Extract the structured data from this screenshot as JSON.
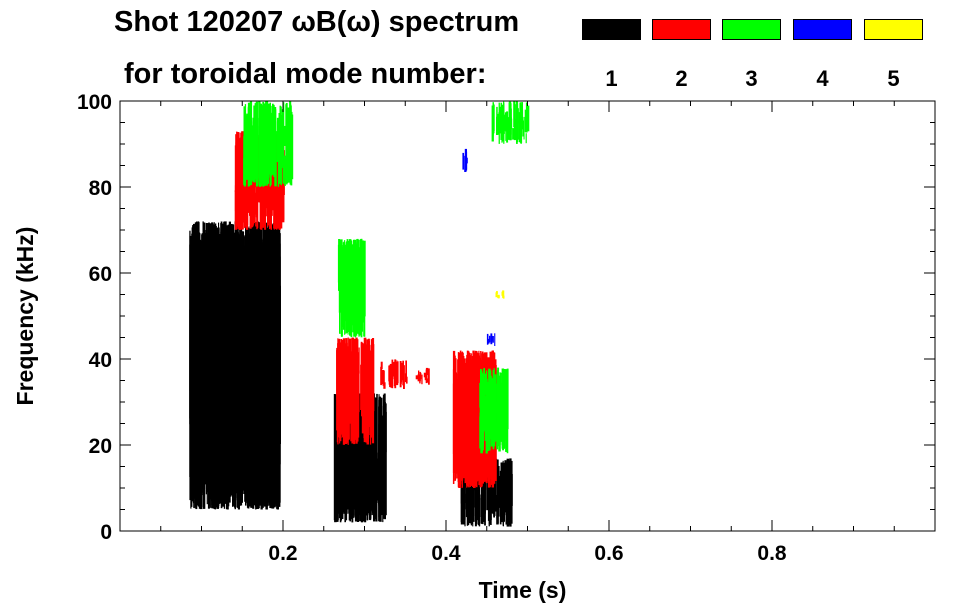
{
  "header": {
    "title_line1": "Shot 120207 ωB(ω) spectrum",
    "title_line2": "for toroidal mode number:"
  },
  "legend": [
    {
      "label": "1",
      "color": "#000000"
    },
    {
      "label": "2",
      "color": "#ff0000"
    },
    {
      "label": "3",
      "color": "#00ff00"
    },
    {
      "label": "4",
      "color": "#0000ff"
    },
    {
      "label": "5",
      "color": "#ffff00"
    }
  ],
  "chart_data": {
    "type": "heatmap",
    "title": "Shot 120207 ωB(ω) spectrum for toroidal mode number",
    "xlabel": "Time (s)",
    "ylabel": "Frequency (kHz)",
    "xlim": [
      0.0,
      1.0
    ],
    "ylim": [
      0,
      100
    ],
    "x_ticks": [
      0.2,
      0.4,
      0.6,
      0.8
    ],
    "x_tick_labels": [
      "0.2",
      "0.4",
      "0.6",
      "0.8"
    ],
    "y_ticks": [
      0,
      20,
      40,
      60,
      80,
      100
    ],
    "y_tick_labels": [
      "0",
      "20",
      "40",
      "60",
      "80",
      "100"
    ],
    "series": [
      {
        "name": "n=1",
        "color": "#000000",
        "regions": [
          {
            "t": [
              0.085,
              0.195
            ],
            "f": [
              5,
              72
            ]
          },
          {
            "t": [
              0.262,
              0.325
            ],
            "f": [
              2,
              32
            ]
          },
          {
            "t": [
              0.418,
              0.48
            ],
            "f": [
              1,
              17
            ]
          }
        ]
      },
      {
        "name": "n=2",
        "color": "#ff0000",
        "regions": [
          {
            "t": [
              0.14,
              0.2
            ],
            "f": [
              70,
              93
            ]
          },
          {
            "t": [
              0.265,
              0.31
            ],
            "f": [
              20,
              45
            ]
          },
          {
            "t": [
              0.318,
              0.352
            ],
            "f": [
              33,
              40
            ]
          },
          {
            "t": [
              0.362,
              0.378
            ],
            "f": [
              34,
              38
            ]
          },
          {
            "t": [
              0.408,
              0.46
            ],
            "f": [
              10,
              42
            ]
          }
        ]
      },
      {
        "name": "n=3",
        "color": "#00ff00",
        "regions": [
          {
            "t": [
              0.15,
              0.21
            ],
            "f": [
              80,
              100
            ]
          },
          {
            "t": [
              0.267,
              0.3
            ],
            "f": [
              45,
              68
            ]
          },
          {
            "t": [
              0.44,
              0.475
            ],
            "f": [
              18,
              38
            ]
          },
          {
            "t": [
              0.455,
              0.5
            ],
            "f": [
              90,
              100
            ]
          }
        ]
      },
      {
        "name": "n=4",
        "color": "#0000ff",
        "regions": [
          {
            "t": [
              0.45,
              0.46
            ],
            "f": [
              43,
              46
            ]
          },
          {
            "t": [
              0.42,
              0.425
            ],
            "f": [
              83,
              89
            ]
          }
        ]
      },
      {
        "name": "n=5",
        "color": "#ffff00",
        "regions": [
          {
            "t": [
              0.46,
              0.47
            ],
            "f": [
              54,
              56
            ]
          }
        ]
      }
    ]
  }
}
